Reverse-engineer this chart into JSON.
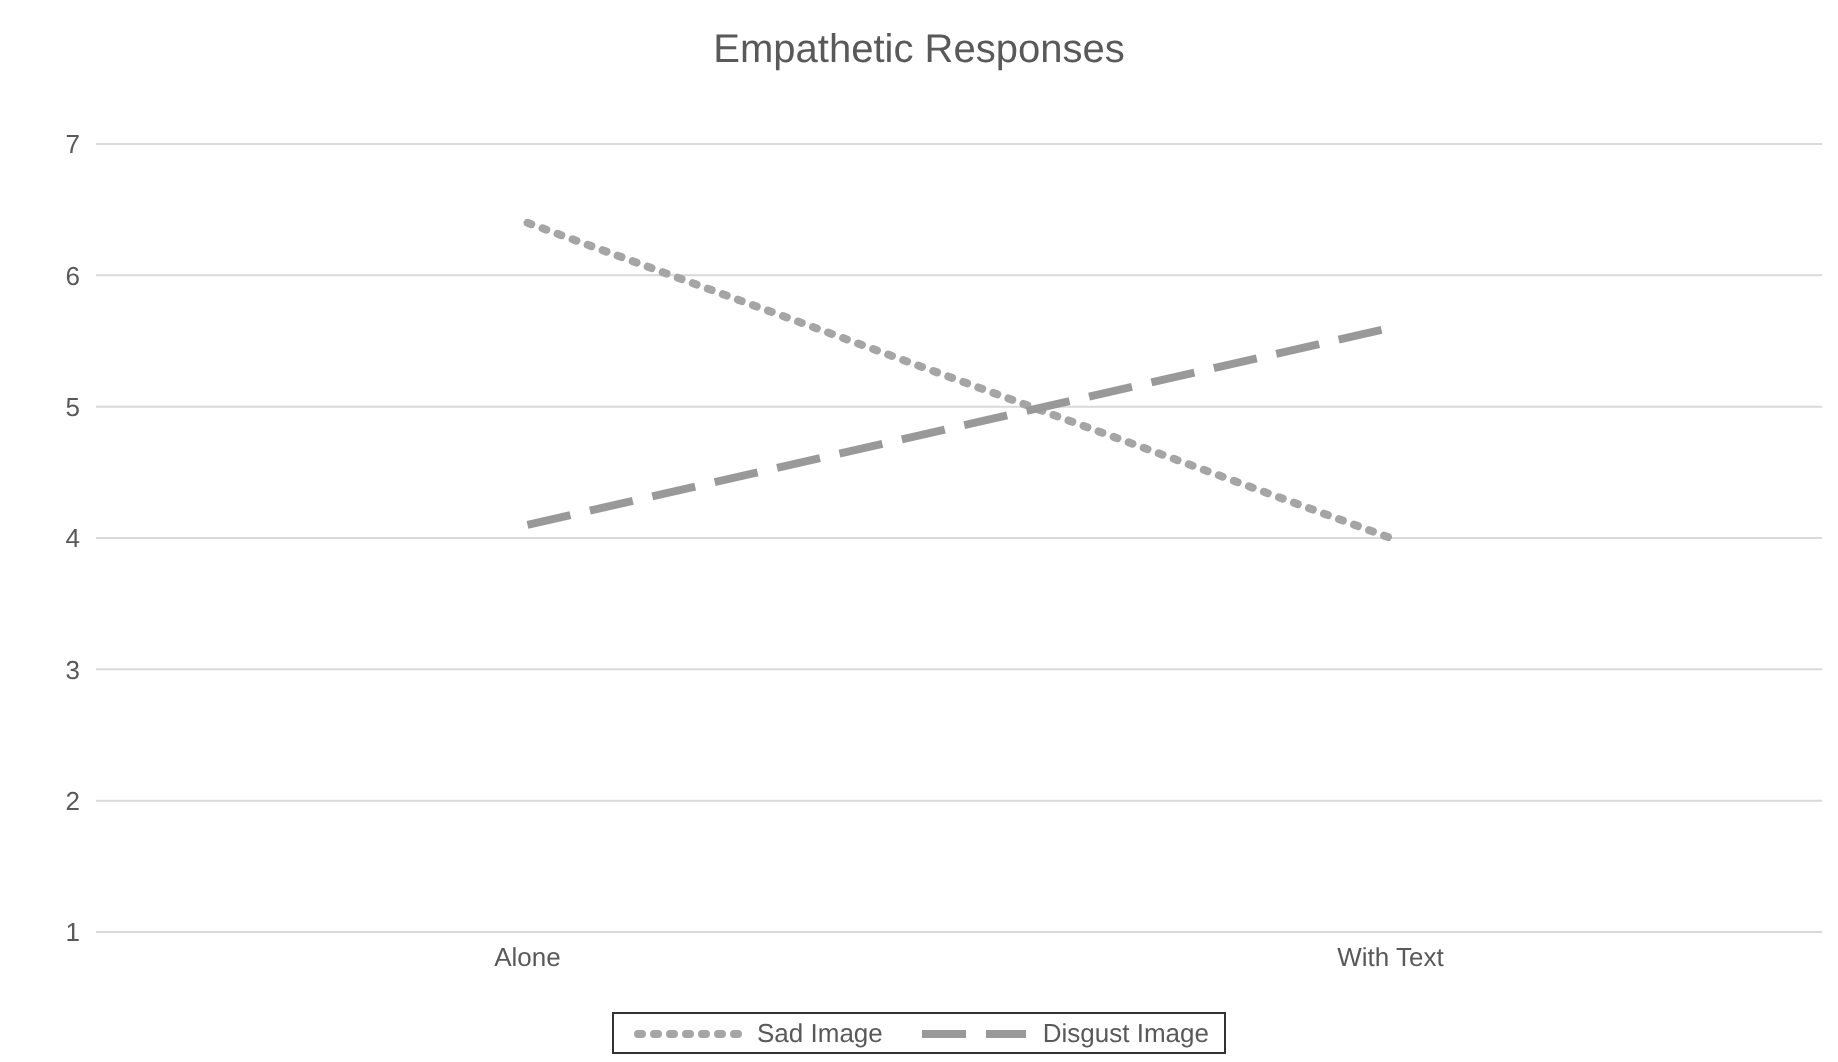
{
  "chart_data": {
    "type": "line",
    "title": "Empathetic Responses",
    "categories": [
      "Alone",
      "With Text"
    ],
    "series": [
      {
        "name": "Sad Image",
        "color": "#a5a5a5",
        "values": [
          6.4,
          4.0
        ],
        "line_style": "dotted"
      },
      {
        "name": "Disgust Image",
        "color": "#999999",
        "values": [
          4.1,
          5.6
        ],
        "line_style": "dashed"
      }
    ],
    "ylim": [
      1,
      7
    ],
    "yticks": [
      1,
      2,
      3,
      4,
      5,
      6,
      7
    ],
    "grid": "y",
    "legend": "bottom",
    "marker": "none"
  }
}
